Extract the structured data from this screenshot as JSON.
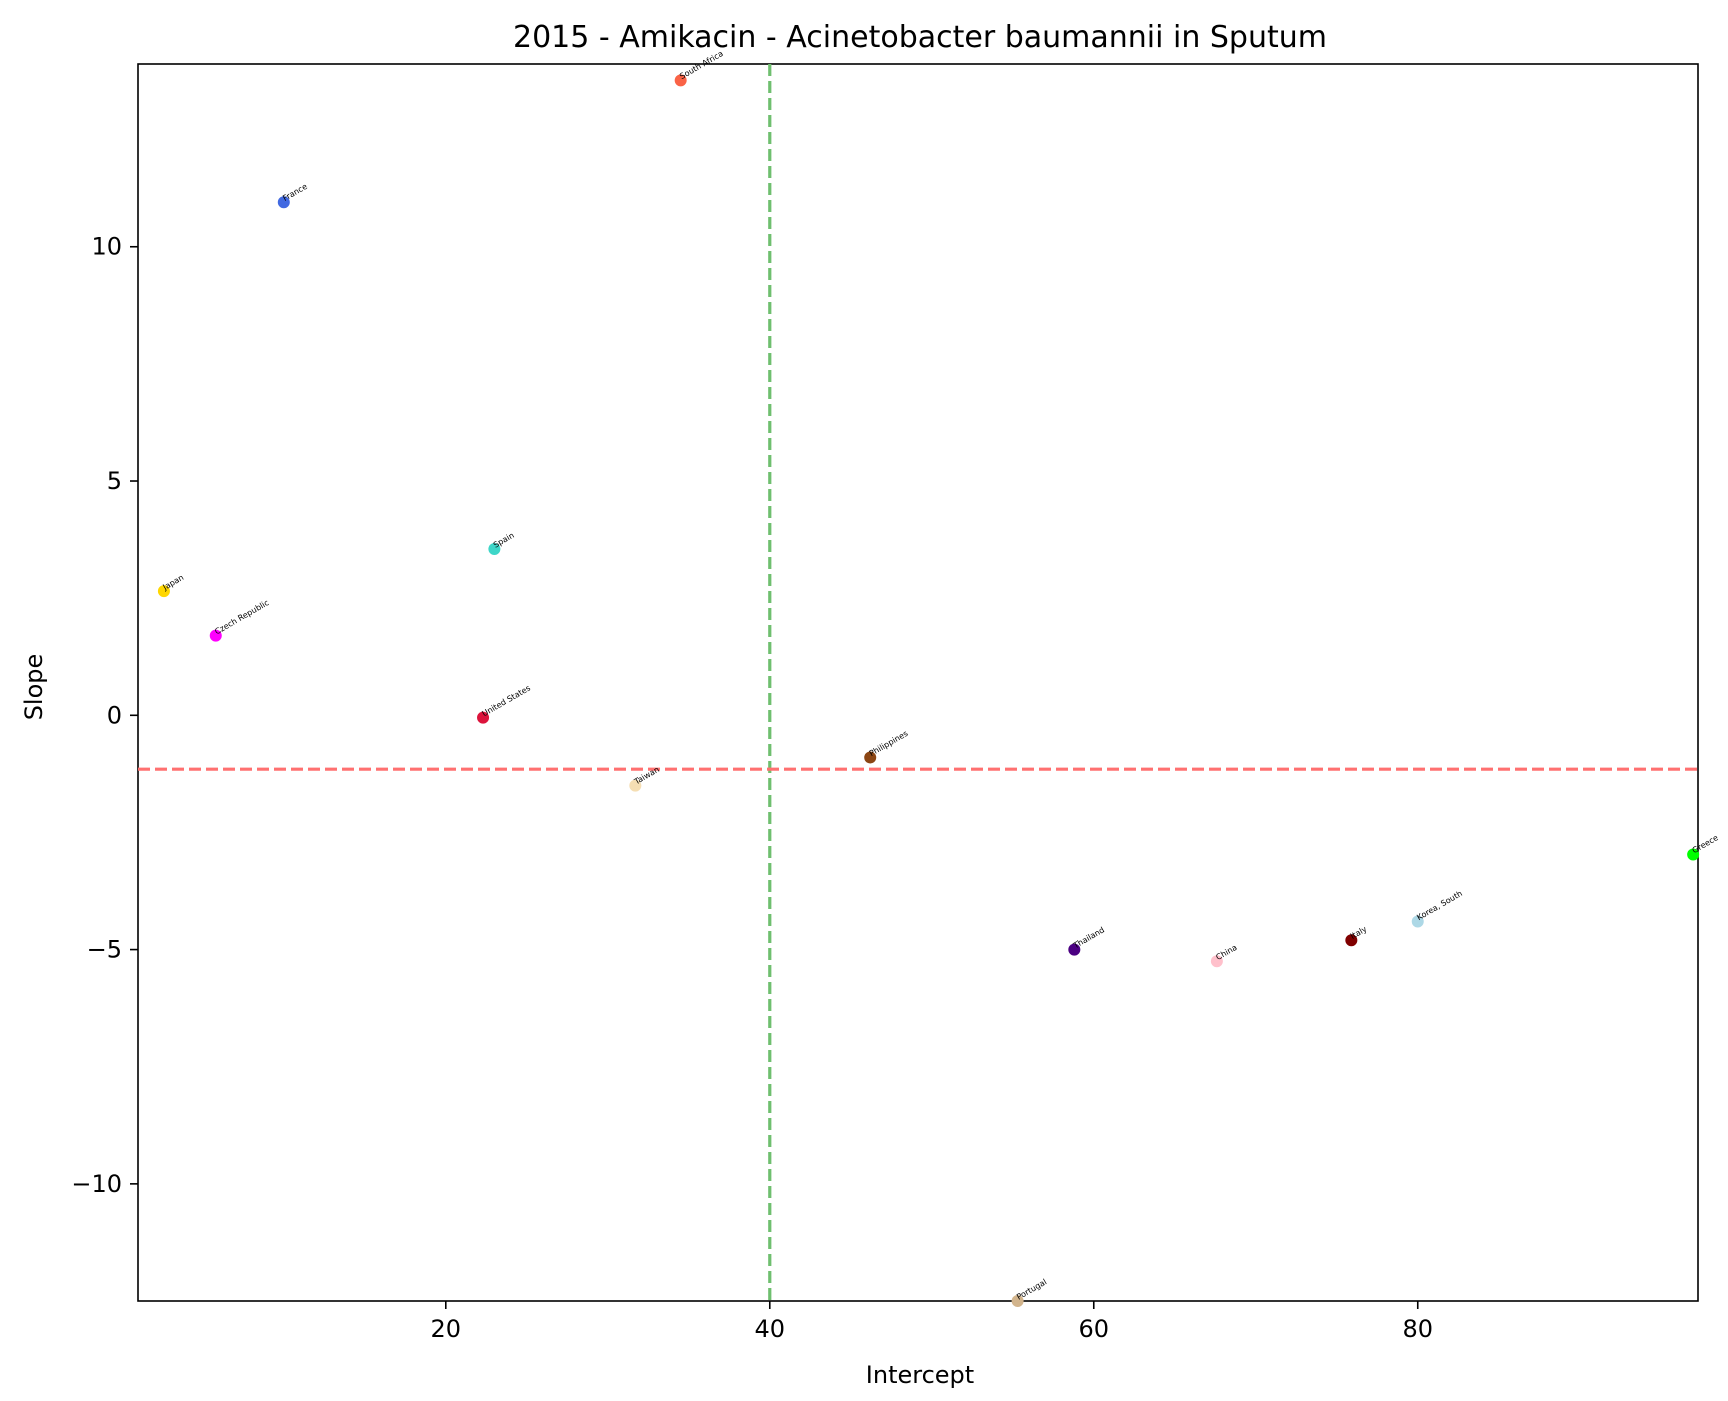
{
  "chart_data": {
    "type": "scatter",
    "title": "2015 - Amikacin - Acinetobacter baumannii in Sputum",
    "xlabel": "Intercept",
    "ylabel": "Slope",
    "xlim": [
      1.0,
      97.3
    ],
    "ylim": [
      -12.5,
      13.9
    ],
    "xticks": [
      20,
      40,
      60,
      80
    ],
    "yticks": [
      -10,
      -5,
      0,
      5,
      10
    ],
    "xtick_labels": [
      "20",
      "40",
      "60",
      "80"
    ],
    "ytick_labels": [
      "−10",
      "−5",
      "0",
      "5",
      "10"
    ],
    "grid": false,
    "legend": "none",
    "reference_lines": {
      "vertical": {
        "x": 40.0,
        "color": "#6fbf6f",
        "style": "dashed"
      },
      "horizontal": {
        "y": -1.15,
        "color": "#ff7070",
        "style": "dashed"
      }
    },
    "points": [
      {
        "label": "South Africa",
        "x": 34.5,
        "y": 13.55,
        "color": "#fa6346"
      },
      {
        "label": "France",
        "x": 10.0,
        "y": 10.95,
        "color": "#4169e1"
      },
      {
        "label": "Spain",
        "x": 23.0,
        "y": 3.55,
        "color": "#3ed6c8"
      },
      {
        "label": "Japan",
        "x": 2.6,
        "y": 2.65,
        "color": "#ffd700"
      },
      {
        "label": "Czech Republic",
        "x": 5.8,
        "y": 1.7,
        "color": "#ff00ff"
      },
      {
        "label": "United States",
        "x": 22.3,
        "y": -0.05,
        "color": "#dc143c"
      },
      {
        "label": "Taiwan",
        "x": 31.7,
        "y": -1.5,
        "color": "#f5deb3"
      },
      {
        "label": "Philippines",
        "x": 46.2,
        "y": -0.9,
        "color": "#8b4513"
      },
      {
        "label": "Greece",
        "x": 97.0,
        "y": -2.97,
        "color": "#00ff00"
      },
      {
        "label": "Korea, South",
        "x": 80.0,
        "y": -4.4,
        "color": "#add8e6"
      },
      {
        "label": "Italy",
        "x": 75.9,
        "y": -4.8,
        "color": "#800000"
      },
      {
        "label": "China",
        "x": 67.6,
        "y": -5.25,
        "color": "#ffc0cb"
      },
      {
        "label": "Thailand",
        "x": 58.8,
        "y": -5.0,
        "color": "#4b0082"
      },
      {
        "label": "Portugal",
        "x": 55.3,
        "y": -12.5,
        "color": "#d2b48c"
      }
    ]
  }
}
